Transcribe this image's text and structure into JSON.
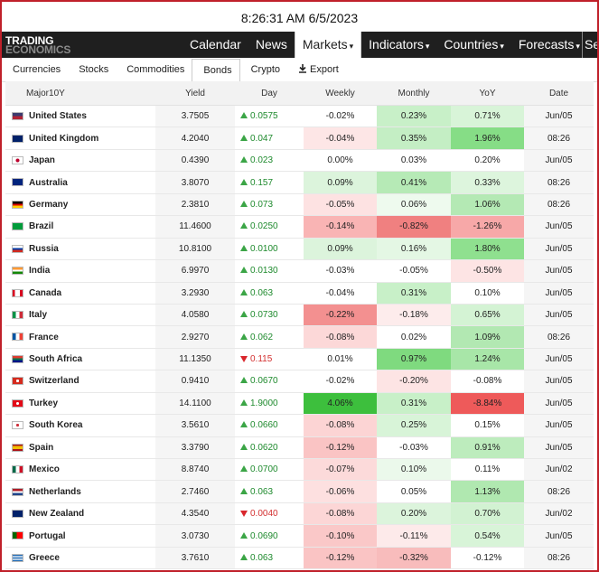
{
  "topbar": {
    "datetime": "8:26:31 AM 6/5/2023"
  },
  "logo": {
    "line1": "TRADING",
    "line2": "ECONOMICS"
  },
  "nav": {
    "items": [
      {
        "label": "Calendar",
        "active": false,
        "caret": ""
      },
      {
        "label": "News",
        "active": false,
        "caret": ""
      },
      {
        "label": "Markets",
        "active": true,
        "caret": "▾"
      },
      {
        "label": "Indicators",
        "active": false,
        "caret": "▾"
      },
      {
        "label": "Countries",
        "active": false,
        "caret": "▾"
      },
      {
        "label": "Forecasts",
        "active": false,
        "caret": "▾"
      }
    ],
    "search_partial": "Se"
  },
  "subtabs": {
    "items": [
      "Currencies",
      "Stocks",
      "Commodities",
      "Bonds",
      "Crypto"
    ],
    "active": "Bonds",
    "export_label": "Export"
  },
  "table": {
    "headers": [
      "Major10Y",
      "Yield",
      "Day",
      "Weekly",
      "Monthly",
      "YoY",
      "Date"
    ],
    "rows": [
      {
        "flag": "us",
        "name": "United States",
        "yield": "3.7505",
        "dir": "up",
        "day": "0.0575",
        "weekly": "-0.02%",
        "monthly": "0.23%",
        "yoy": "0.71%",
        "date": "Jun/05",
        "wbg": "#ffffff",
        "mbg": "#c8f0c8",
        "ybg": "#d8f4d8"
      },
      {
        "flag": "gb",
        "name": "United Kingdom",
        "yield": "4.2040",
        "dir": "up",
        "day": "0.047",
        "weekly": "-0.04%",
        "monthly": "0.35%",
        "yoy": "1.96%",
        "date": "08:26",
        "wbg": "#fde6e6",
        "mbg": "#c4eec4",
        "ybg": "#86dd86"
      },
      {
        "flag": "jp",
        "name": "Japan",
        "yield": "0.4390",
        "dir": "up",
        "day": "0.023",
        "weekly": "0.00%",
        "monthly": "0.03%",
        "yoy": "0.20%",
        "date": "Jun/05",
        "wbg": "#ffffff",
        "mbg": "#ffffff",
        "ybg": "#ffffff"
      },
      {
        "flag": "au",
        "name": "Australia",
        "yield": "3.8070",
        "dir": "up",
        "day": "0.157",
        "weekly": "0.09%",
        "monthly": "0.41%",
        "yoy": "0.33%",
        "date": "08:26",
        "wbg": "#dcf4dc",
        "mbg": "#b6eab6",
        "ybg": "#ddf5dd"
      },
      {
        "flag": "de",
        "name": "Germany",
        "yield": "2.3810",
        "dir": "up",
        "day": "0.073",
        "weekly": "-0.05%",
        "monthly": "0.06%",
        "yoy": "1.06%",
        "date": "08:26",
        "wbg": "#fde2e2",
        "mbg": "#eefaee",
        "ybg": "#b4e9b4"
      },
      {
        "flag": "br",
        "name": "Brazil",
        "yield": "11.4600",
        "dir": "up",
        "day": "0.0250",
        "weekly": "-0.14%",
        "monthly": "-0.82%",
        "yoy": "-1.26%",
        "date": "Jun/05",
        "wbg": "#f9b4b4",
        "mbg": "#f08080",
        "ybg": "#f7a8a8"
      },
      {
        "flag": "ru",
        "name": "Russia",
        "yield": "10.8100",
        "dir": "up",
        "day": "0.0100",
        "weekly": "0.09%",
        "monthly": "0.16%",
        "yoy": "1.80%",
        "date": "Jun/05",
        "wbg": "#dcf4dc",
        "mbg": "#e4f7e4",
        "ybg": "#8fe08f"
      },
      {
        "flag": "in",
        "name": "India",
        "yield": "6.9970",
        "dir": "up",
        "day": "0.0130",
        "weekly": "-0.03%",
        "monthly": "-0.05%",
        "yoy": "-0.50%",
        "date": "Jun/05",
        "wbg": "#ffffff",
        "mbg": "#ffffff",
        "ybg": "#fde4e4"
      },
      {
        "flag": "ca",
        "name": "Canada",
        "yield": "3.2930",
        "dir": "up",
        "day": "0.063",
        "weekly": "-0.04%",
        "monthly": "0.31%",
        "yoy": "0.10%",
        "date": "Jun/05",
        "wbg": "#ffffff",
        "mbg": "#c8f0c8",
        "ybg": "#ffffff"
      },
      {
        "flag": "it",
        "name": "Italy",
        "yield": "4.0580",
        "dir": "up",
        "day": "0.0730",
        "weekly": "-0.22%",
        "monthly": "-0.18%",
        "yoy": "0.65%",
        "date": "Jun/05",
        "wbg": "#f39090",
        "mbg": "#fdecec",
        "ybg": "#d4f3d4"
      },
      {
        "flag": "fr",
        "name": "France",
        "yield": "2.9270",
        "dir": "up",
        "day": "0.062",
        "weekly": "-0.08%",
        "monthly": "0.02%",
        "yoy": "1.09%",
        "date": "08:26",
        "wbg": "#fcd8d8",
        "mbg": "#ffffff",
        "ybg": "#b2e8b2"
      },
      {
        "flag": "za",
        "name": "South Africa",
        "yield": "11.1350",
        "dir": "down",
        "day": "0.115",
        "weekly": "0.01%",
        "monthly": "0.97%",
        "yoy": "1.24%",
        "date": "Jun/05",
        "wbg": "#ffffff",
        "mbg": "#7fda7f",
        "ybg": "#a8e6a8"
      },
      {
        "flag": "ch",
        "name": "Switzerland",
        "yield": "0.9410",
        "dir": "up",
        "day": "0.0670",
        "weekly": "-0.02%",
        "monthly": "-0.20%",
        "yoy": "-0.08%",
        "date": "Jun/05",
        "wbg": "#ffffff",
        "mbg": "#fde4e4",
        "ybg": "#ffffff"
      },
      {
        "flag": "tr",
        "name": "Turkey",
        "yield": "14.1100",
        "dir": "up",
        "day": "1.9000",
        "weekly": "4.06%",
        "monthly": "0.31%",
        "yoy": "-8.84%",
        "date": "Jun/05",
        "wbg": "#3dbf3d",
        "mbg": "#c8f0c8",
        "ybg": "#ee5a5a"
      },
      {
        "flag": "kr",
        "name": "South Korea",
        "yield": "3.5610",
        "dir": "up",
        "day": "0.0660",
        "weekly": "-0.08%",
        "monthly": "0.25%",
        "yoy": "0.15%",
        "date": "Jun/05",
        "wbg": "#fcd4d4",
        "mbg": "#d8f4d8",
        "ybg": "#ffffff"
      },
      {
        "flag": "es",
        "name": "Spain",
        "yield": "3.3790",
        "dir": "up",
        "day": "0.0620",
        "weekly": "-0.12%",
        "monthly": "-0.03%",
        "yoy": "0.91%",
        "date": "Jun/05",
        "wbg": "#fac4c4",
        "mbg": "#ffffff",
        "ybg": "#bdecbd"
      },
      {
        "flag": "mx",
        "name": "Mexico",
        "yield": "8.8740",
        "dir": "up",
        "day": "0.0700",
        "weekly": "-0.07%",
        "monthly": "0.10%",
        "yoy": "0.11%",
        "date": "Jun/02",
        "wbg": "#fcdada",
        "mbg": "#ebf9eb",
        "ybg": "#ffffff"
      },
      {
        "flag": "nl",
        "name": "Netherlands",
        "yield": "2.7460",
        "dir": "up",
        "day": "0.063",
        "weekly": "-0.06%",
        "monthly": "0.05%",
        "yoy": "1.13%",
        "date": "08:26",
        "wbg": "#fde0e0",
        "mbg": "#ffffff",
        "ybg": "#b0e8b0"
      },
      {
        "flag": "nz",
        "name": "New Zealand",
        "yield": "4.3540",
        "dir": "down",
        "day": "0.0040",
        "weekly": "-0.08%",
        "monthly": "0.20%",
        "yoy": "0.70%",
        "date": "Jun/02",
        "wbg": "#fcd6d6",
        "mbg": "#dcf4dc",
        "ybg": "#d2f2d2"
      },
      {
        "flag": "pt",
        "name": "Portugal",
        "yield": "3.0730",
        "dir": "up",
        "day": "0.0690",
        "weekly": "-0.10%",
        "monthly": "-0.11%",
        "yoy": "0.54%",
        "date": "Jun/05",
        "wbg": "#fac8c8",
        "mbg": "#fdeaea",
        "ybg": "#d8f4d8"
      },
      {
        "flag": "gr",
        "name": "Greece",
        "yield": "3.7610",
        "dir": "up",
        "day": "0.063",
        "weekly": "-0.12%",
        "monthly": "-0.32%",
        "yoy": "-0.12%",
        "date": "08:26",
        "wbg": "#fac4c4",
        "mbg": "#f8bcbc",
        "ybg": "#ffffff"
      }
    ]
  },
  "colors": {
    "up": "#3ba546",
    "down": "#d9262c",
    "nav_bg": "#1f1f1f",
    "frame": "#c0202a"
  }
}
